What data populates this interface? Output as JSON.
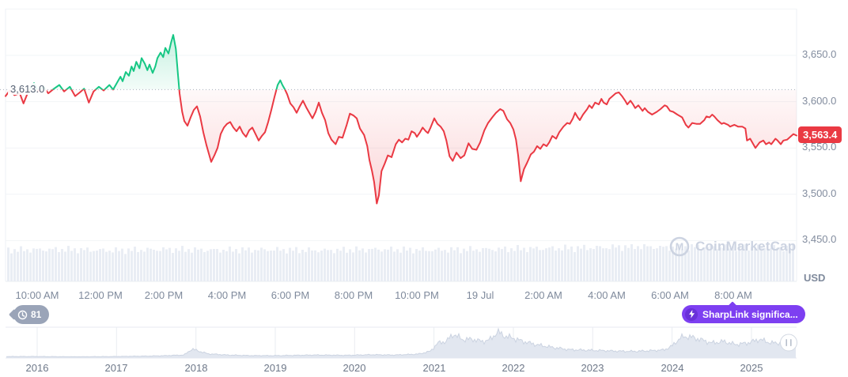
{
  "watermark": {
    "text": "CoinMarketCap"
  },
  "badges": {
    "history_count": "81",
    "news_label": "SharpLink significa..."
  },
  "colors": {
    "up_green": "#16c784",
    "down_red": "#ea3943",
    "last_badge_bg": "#ea3943",
    "news_badge_bg": "#7d3ff1",
    "history_badge_bg": "#9aa4b8",
    "volume_bar": "#e9edf4",
    "navigator_fill": "#e2e7f0",
    "gridline": "#f2f4f7",
    "axis_text": "#7f8a9c",
    "watermark_text": "#ccd3e1"
  },
  "chart_data": {
    "type": "line",
    "baseline": {
      "value": 3613.0,
      "label": "3,613.0"
    },
    "last_price": {
      "value": 3563.4,
      "label": "3,563.4"
    },
    "y_axis": {
      "unit": "USD",
      "ticks": [
        {
          "value": 3650,
          "label": "3,650.0"
        },
        {
          "value": 3600,
          "label": "3,600.0"
        },
        {
          "value": 3550,
          "label": "3,550.0"
        },
        {
          "value": 3500,
          "label": "3,500.0"
        },
        {
          "value": 3450,
          "label": "3,450.0"
        }
      ],
      "gridlines": [
        3700,
        3650,
        3600,
        3550,
        3500,
        3450
      ]
    },
    "x_axis": {
      "ticks": [
        {
          "min": 60,
          "label": "10:00 AM"
        },
        {
          "min": 180,
          "label": "12:00 PM"
        },
        {
          "min": 300,
          "label": "2:00 PM"
        },
        {
          "min": 420,
          "label": "4:00 PM"
        },
        {
          "min": 540,
          "label": "6:00 PM"
        },
        {
          "min": 660,
          "label": "8:00 PM"
        },
        {
          "min": 780,
          "label": "10:00 PM"
        },
        {
          "min": 900,
          "label": "19 Jul"
        },
        {
          "min": 1020,
          "label": "2:00 AM"
        },
        {
          "min": 1140,
          "label": "4:00 AM"
        },
        {
          "min": 1260,
          "label": "6:00 AM"
        },
        {
          "min": 1380,
          "label": "8:00 AM"
        }
      ]
    },
    "series": {
      "name": "price",
      "points": [
        [
          0,
          3606
        ],
        [
          8,
          3612
        ],
        [
          17,
          3607
        ],
        [
          27,
          3609
        ],
        [
          34,
          3598
        ],
        [
          44,
          3612
        ],
        [
          54,
          3620
        ],
        [
          62,
          3611
        ],
        [
          72,
          3616
        ],
        [
          81,
          3609
        ],
        [
          92,
          3614
        ],
        [
          102,
          3618
        ],
        [
          111,
          3611
        ],
        [
          122,
          3616
        ],
        [
          132,
          3606
        ],
        [
          141,
          3610
        ],
        [
          149,
          3614
        ],
        [
          158,
          3599
        ],
        [
          167,
          3611
        ],
        [
          177,
          3616
        ],
        [
          186,
          3612
        ],
        [
          197,
          3618
        ],
        [
          204,
          3613
        ],
        [
          212,
          3621
        ],
        [
          218,
          3627
        ],
        [
          222,
          3622
        ],
        [
          228,
          3632
        ],
        [
          234,
          3628
        ],
        [
          239,
          3638
        ],
        [
          243,
          3633
        ],
        [
          248,
          3643
        ],
        [
          254,
          3636
        ],
        [
          258,
          3647
        ],
        [
          264,
          3641
        ],
        [
          269,
          3634
        ],
        [
          273,
          3640
        ],
        [
          279,
          3631
        ],
        [
          284,
          3638
        ],
        [
          288,
          3647
        ],
        [
          294,
          3653
        ],
        [
          299,
          3648
        ],
        [
          303,
          3658
        ],
        [
          309,
          3652
        ],
        [
          314,
          3664
        ],
        [
          318,
          3672
        ],
        [
          323,
          3657
        ],
        [
          327,
          3629
        ],
        [
          330,
          3609
        ],
        [
          335,
          3589
        ],
        [
          339,
          3579
        ],
        [
          345,
          3574
        ],
        [
          351,
          3583
        ],
        [
          357,
          3591
        ],
        [
          363,
          3595
        ],
        [
          369,
          3584
        ],
        [
          375,
          3567
        ],
        [
          381,
          3553
        ],
        [
          386,
          3543
        ],
        [
          390,
          3535
        ],
        [
          396,
          3542
        ],
        [
          402,
          3550
        ],
        [
          408,
          3565
        ],
        [
          414,
          3572
        ],
        [
          420,
          3576
        ],
        [
          426,
          3578
        ],
        [
          432,
          3572
        ],
        [
          438,
          3568
        ],
        [
          444,
          3573
        ],
        [
          450,
          3566
        ],
        [
          456,
          3562
        ],
        [
          462,
          3569
        ],
        [
          468,
          3572
        ],
        [
          474,
          3565
        ],
        [
          480,
          3558
        ],
        [
          486,
          3563
        ],
        [
          492,
          3567
        ],
        [
          498,
          3578
        ],
        [
          504,
          3591
        ],
        [
          510,
          3605
        ],
        [
          516,
          3618
        ],
        [
          521,
          3623
        ],
        [
          525,
          3618
        ],
        [
          530,
          3613
        ],
        [
          534,
          3608
        ],
        [
          540,
          3598
        ],
        [
          546,
          3594
        ],
        [
          552,
          3588
        ],
        [
          558,
          3595
        ],
        [
          564,
          3601
        ],
        [
          570,
          3594
        ],
        [
          576,
          3588
        ],
        [
          582,
          3582
        ],
        [
          588,
          3589
        ],
        [
          594,
          3599
        ],
        [
          600,
          3588
        ],
        [
          606,
          3580
        ],
        [
          612,
          3566
        ],
        [
          618,
          3559
        ],
        [
          626,
          3554
        ],
        [
          632,
          3562
        ],
        [
          639,
          3561
        ],
        [
          647,
          3575
        ],
        [
          653,
          3587
        ],
        [
          660,
          3585
        ],
        [
          666,
          3582
        ],
        [
          672,
          3571
        ],
        [
          680,
          3564
        ],
        [
          686,
          3552
        ],
        [
          690,
          3537
        ],
        [
          695,
          3525
        ],
        [
          699,
          3513
        ],
        [
          704,
          3490
        ],
        [
          708,
          3499
        ],
        [
          713,
          3525
        ],
        [
          719,
          3533
        ],
        [
          725,
          3542
        ],
        [
          732,
          3540
        ],
        [
          740,
          3554
        ],
        [
          746,
          3559
        ],
        [
          752,
          3556
        ],
        [
          758,
          3560
        ],
        [
          764,
          3559
        ],
        [
          770,
          3568
        ],
        [
          776,
          3566
        ],
        [
          780,
          3562
        ],
        [
          786,
          3567
        ],
        [
          791,
          3572
        ],
        [
          797,
          3568
        ],
        [
          801,
          3566
        ],
        [
          806,
          3572
        ],
        [
          813,
          3582
        ],
        [
          819,
          3576
        ],
        [
          825,
          3573
        ],
        [
          831,
          3568
        ],
        [
          836,
          3558
        ],
        [
          842,
          3541
        ],
        [
          848,
          3536
        ],
        [
          855,
          3545
        ],
        [
          863,
          3539
        ],
        [
          870,
          3542
        ],
        [
          878,
          3555
        ],
        [
          885,
          3549
        ],
        [
          893,
          3548
        ],
        [
          900,
          3556
        ],
        [
          908,
          3569
        ],
        [
          915,
          3577
        ],
        [
          923,
          3583
        ],
        [
          930,
          3588
        ],
        [
          938,
          3592
        ],
        [
          944,
          3590
        ],
        [
          951,
          3581
        ],
        [
          957,
          3577
        ],
        [
          963,
          3570
        ],
        [
          968,
          3559
        ],
        [
          972,
          3542
        ],
        [
          977,
          3514
        ],
        [
          983,
          3527
        ],
        [
          989,
          3534
        ],
        [
          996,
          3543
        ],
        [
          1002,
          3546
        ],
        [
          1008,
          3552
        ],
        [
          1014,
          3549
        ],
        [
          1020,
          3554
        ],
        [
          1026,
          3552
        ],
        [
          1031,
          3556
        ],
        [
          1037,
          3563
        ],
        [
          1044,
          3560
        ],
        [
          1050,
          3567
        ],
        [
          1058,
          3573
        ],
        [
          1065,
          3577
        ],
        [
          1070,
          3576
        ],
        [
          1076,
          3582
        ],
        [
          1080,
          3588
        ],
        [
          1085,
          3583
        ],
        [
          1089,
          3580
        ],
        [
          1095,
          3586
        ],
        [
          1103,
          3592
        ],
        [
          1107,
          3596
        ],
        [
          1112,
          3593
        ],
        [
          1118,
          3599
        ],
        [
          1125,
          3597
        ],
        [
          1130,
          3603
        ],
        [
          1134,
          3599
        ],
        [
          1140,
          3597
        ],
        [
          1145,
          3603
        ],
        [
          1151,
          3606
        ],
        [
          1157,
          3609
        ],
        [
          1163,
          3610
        ],
        [
          1169,
          3606
        ],
        [
          1175,
          3601
        ],
        [
          1179,
          3597
        ],
        [
          1185,
          3601
        ],
        [
          1190,
          3597
        ],
        [
          1194,
          3593
        ],
        [
          1200,
          3596
        ],
        [
          1208,
          3590
        ],
        [
          1212,
          3593
        ],
        [
          1218,
          3589
        ],
        [
          1226,
          3586
        ],
        [
          1235,
          3589
        ],
        [
          1242,
          3592
        ],
        [
          1250,
          3596
        ],
        [
          1254,
          3595
        ],
        [
          1260,
          3590
        ],
        [
          1266,
          3589
        ],
        [
          1274,
          3586
        ],
        [
          1283,
          3583
        ],
        [
          1290,
          3575
        ],
        [
          1295,
          3572
        ],
        [
          1302,
          3577
        ],
        [
          1310,
          3576
        ],
        [
          1317,
          3576
        ],
        [
          1325,
          3580
        ],
        [
          1329,
          3584
        ],
        [
          1335,
          3583
        ],
        [
          1340,
          3586
        ],
        [
          1344,
          3584
        ],
        [
          1350,
          3580
        ],
        [
          1358,
          3576
        ],
        [
          1362,
          3577
        ],
        [
          1370,
          3575
        ],
        [
          1374,
          3573
        ],
        [
          1382,
          3575
        ],
        [
          1389,
          3573
        ],
        [
          1397,
          3573
        ],
        [
          1403,
          3571
        ],
        [
          1406,
          3558
        ],
        [
          1412,
          3560
        ],
        [
          1418,
          3554
        ],
        [
          1422,
          3550
        ],
        [
          1430,
          3556
        ],
        [
          1437,
          3558
        ],
        [
          1442,
          3554
        ],
        [
          1448,
          3556
        ],
        [
          1452,
          3554
        ],
        [
          1460,
          3560
        ],
        [
          1464,
          3558
        ],
        [
          1470,
          3554
        ],
        [
          1475,
          3558
        ],
        [
          1482,
          3559
        ],
        [
          1490,
          3563
        ],
        [
          1494,
          3565
        ],
        [
          1500,
          3563.4
        ]
      ]
    },
    "volume_profile": [
      [
        0,
        0.86
      ],
      [
        100,
        0.88
      ],
      [
        200,
        0.85
      ],
      [
        300,
        0.88
      ],
      [
        400,
        0.86
      ],
      [
        500,
        0.87
      ],
      [
        600,
        0.85
      ],
      [
        700,
        0.88
      ],
      [
        800,
        0.86
      ],
      [
        900,
        0.88
      ],
      [
        1000,
        0.9
      ],
      [
        1100,
        0.92
      ],
      [
        1200,
        0.96
      ],
      [
        1250,
        0.93
      ],
      [
        1300,
        0.95
      ],
      [
        1400,
        0.94
      ],
      [
        1500,
        0.92
      ]
    ],
    "navigator": {
      "years": [
        "2016",
        "2017",
        "2018",
        "2019",
        "2020",
        "2021",
        "2022",
        "2023",
        "2024",
        "2025"
      ],
      "profile": [
        [
          2015.55,
          0.05
        ],
        [
          2016,
          0.05
        ],
        [
          2016.5,
          0.04
        ],
        [
          2017,
          0.05
        ],
        [
          2017.5,
          0.07
        ],
        [
          2017.85,
          0.1
        ],
        [
          2017.95,
          0.3
        ],
        [
          2018.05,
          0.22
        ],
        [
          2018.15,
          0.14
        ],
        [
          2018.4,
          0.1
        ],
        [
          2018.7,
          0.08
        ],
        [
          2019,
          0.08
        ],
        [
          2019.5,
          0.1
        ],
        [
          2019.9,
          0.09
        ],
        [
          2020.2,
          0.11
        ],
        [
          2020.5,
          0.1
        ],
        [
          2020.8,
          0.13
        ],
        [
          2020.95,
          0.22
        ],
        [
          2021.05,
          0.5
        ],
        [
          2021.15,
          0.55
        ],
        [
          2021.25,
          0.8
        ],
        [
          2021.35,
          0.62
        ],
        [
          2021.5,
          0.62
        ],
        [
          2021.6,
          0.55
        ],
        [
          2021.7,
          0.6
        ],
        [
          2021.8,
          0.87
        ],
        [
          2021.9,
          0.72
        ],
        [
          2022.0,
          0.66
        ],
        [
          2022.1,
          0.57
        ],
        [
          2022.2,
          0.5
        ],
        [
          2022.3,
          0.44
        ],
        [
          2022.5,
          0.35
        ],
        [
          2022.7,
          0.28
        ],
        [
          2022.9,
          0.26
        ],
        [
          2023.1,
          0.25
        ],
        [
          2023.3,
          0.23
        ],
        [
          2023.5,
          0.22
        ],
        [
          2023.7,
          0.24
        ],
        [
          2023.9,
          0.27
        ],
        [
          2024.0,
          0.4
        ],
        [
          2024.1,
          0.67
        ],
        [
          2024.2,
          0.72
        ],
        [
          2024.35,
          0.62
        ],
        [
          2024.5,
          0.5
        ],
        [
          2024.65,
          0.55
        ],
        [
          2024.8,
          0.45
        ],
        [
          2024.95,
          0.5
        ],
        [
          2025.1,
          0.62
        ],
        [
          2025.25,
          0.5
        ],
        [
          2025.4,
          0.5
        ],
        [
          2025.5,
          0.42
        ],
        [
          2025.55,
          0.38
        ]
      ]
    }
  }
}
